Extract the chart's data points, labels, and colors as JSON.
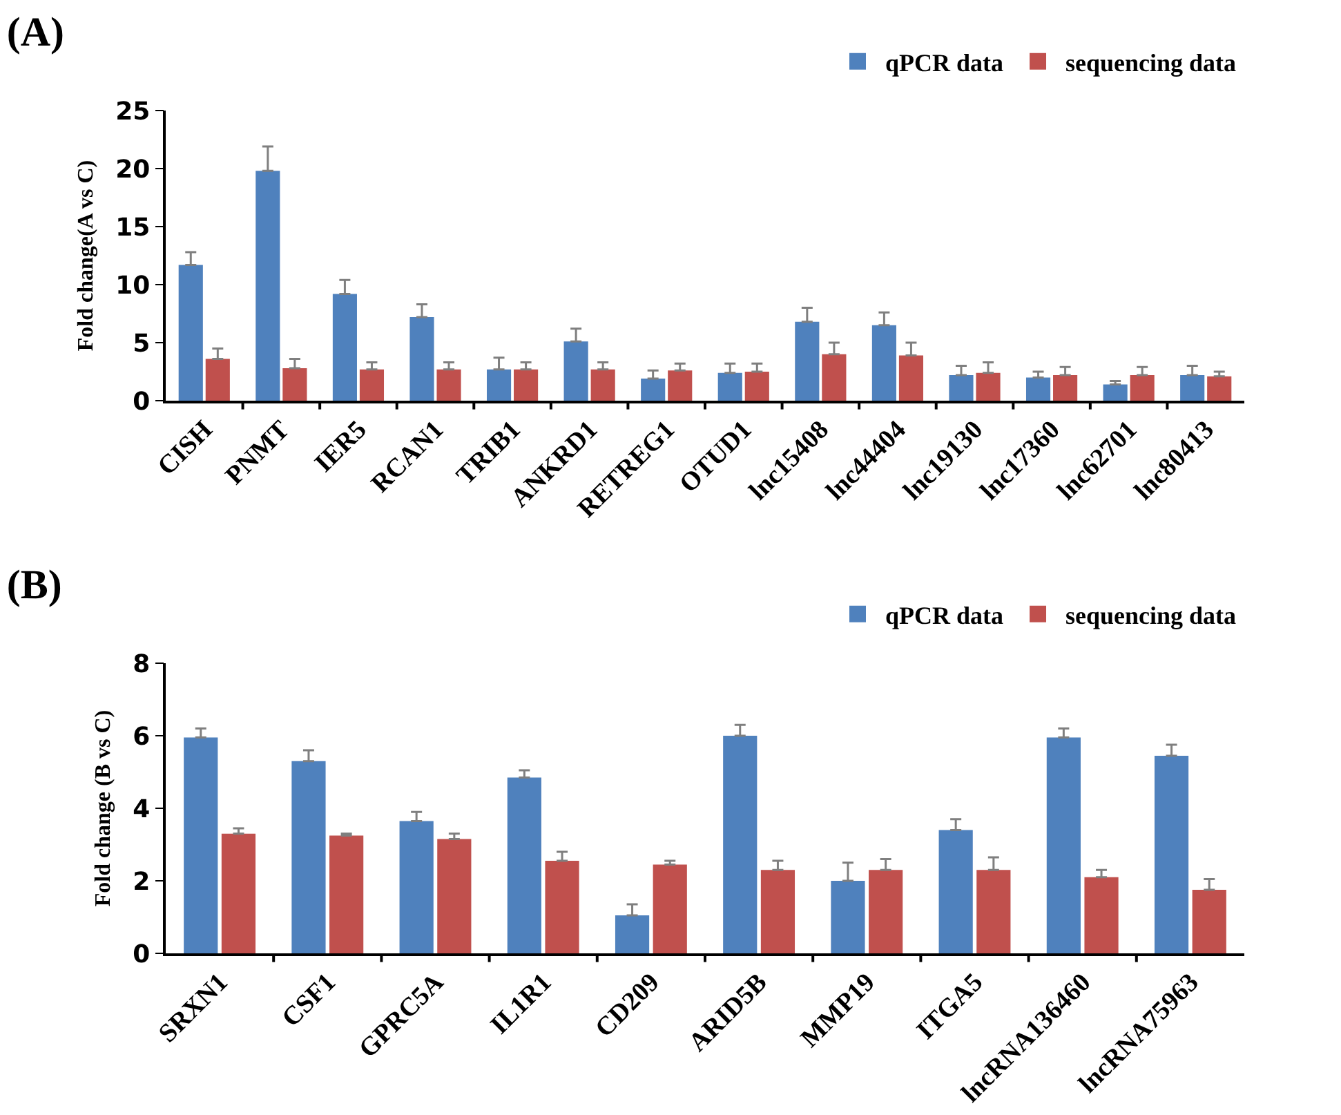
{
  "chart_data": [
    {
      "type": "bar",
      "title": "(A)",
      "ylabel": "Fold change(A vs C)",
      "categories": [
        "CISH",
        "PNMT",
        "IER5",
        "RCAN1",
        "TRIB1",
        "ANKRD1",
        "RETREG1",
        "OTUD1",
        "lnc15408",
        "lnc44404",
        "lnc19130",
        "lnc17360",
        "lnc62701",
        "lnc80413"
      ],
      "series": [
        {
          "name": "qPCR data",
          "color": "#4f81bd",
          "values": [
            11.7,
            19.8,
            9.2,
            7.2,
            2.7,
            5.1,
            1.9,
            2.4,
            6.8,
            6.5,
            2.2,
            2.0,
            1.4,
            2.2
          ],
          "errors": [
            [
              11.7,
              12.8
            ],
            [
              19.8,
              21.9
            ],
            [
              9.2,
              10.4
            ],
            [
              7.2,
              8.3
            ],
            [
              2.7,
              3.7
            ],
            [
              5.1,
              6.2
            ],
            [
              1.9,
              2.6
            ],
            [
              2.4,
              3.2
            ],
            [
              6.8,
              8.0
            ],
            [
              6.5,
              7.6
            ],
            [
              2.2,
              3.0
            ],
            [
              2.0,
              2.5
            ],
            [
              1.4,
              1.7
            ],
            [
              2.2,
              3.0
            ]
          ]
        },
        {
          "name": "sequencing data",
          "color": "#c0504d",
          "values": [
            3.6,
            2.8,
            2.7,
            2.7,
            2.7,
            2.7,
            2.6,
            2.5,
            4.0,
            3.9,
            2.4,
            2.2,
            2.2,
            2.1
          ],
          "errors": [
            [
              3.6,
              4.5
            ],
            [
              2.8,
              3.6
            ],
            [
              2.7,
              3.3
            ],
            [
              2.7,
              3.3
            ],
            [
              2.7,
              3.3
            ],
            [
              2.7,
              3.3
            ],
            [
              2.6,
              3.2
            ],
            [
              2.5,
              3.2
            ],
            [
              4.0,
              5.0
            ],
            [
              3.9,
              5.0
            ],
            [
              2.4,
              3.3
            ],
            [
              2.2,
              2.9
            ],
            [
              2.2,
              2.9
            ],
            [
              2.1,
              2.5
            ]
          ]
        }
      ],
      "ylim": [
        0,
        25
      ],
      "yticks": [
        0,
        5,
        10,
        15,
        20,
        25
      ],
      "grid": false,
      "legend": "top right"
    },
    {
      "type": "bar",
      "title": "(B)",
      "ylabel": "Fold change (B vs C)",
      "categories": [
        "SRXN1",
        "CSF1",
        "GPRC5A",
        "IL1R1",
        "CD209",
        "ARID5B",
        "MMP19",
        "ITGA5",
        "lncRNA136460",
        "lncRNA75963"
      ],
      "series": [
        {
          "name": "qPCR data",
          "color": "#4f81bd",
          "values": [
            5.95,
            5.3,
            3.65,
            4.85,
            1.05,
            6.0,
            2.0,
            3.4,
            5.95,
            5.45
          ],
          "errors": [
            [
              5.95,
              6.2
            ],
            [
              5.3,
              5.6
            ],
            [
              3.65,
              3.9
            ],
            [
              4.85,
              5.05
            ],
            [
              1.05,
              1.35
            ],
            [
              6.0,
              6.3
            ],
            [
              2.0,
              2.5
            ],
            [
              3.4,
              3.7
            ],
            [
              5.95,
              6.2
            ],
            [
              5.45,
              5.75
            ]
          ]
        },
        {
          "name": "sequencing data",
          "color": "#c0504d",
          "values": [
            3.3,
            3.25,
            3.15,
            2.55,
            2.45,
            2.3,
            2.3,
            2.3,
            2.1,
            1.75
          ],
          "errors": [
            [
              3.3,
              3.45
            ],
            [
              3.25,
              3.3
            ],
            [
              3.15,
              3.3
            ],
            [
              2.55,
              2.8
            ],
            [
              2.45,
              2.55
            ],
            [
              2.3,
              2.55
            ],
            [
              2.3,
              2.6
            ],
            [
              2.3,
              2.65
            ],
            [
              2.1,
              2.3
            ],
            [
              1.75,
              2.05
            ]
          ]
        }
      ],
      "ylim": [
        0,
        8
      ],
      "yticks": [
        0,
        2,
        4,
        6,
        8
      ],
      "grid": false,
      "legend": "top right"
    }
  ]
}
